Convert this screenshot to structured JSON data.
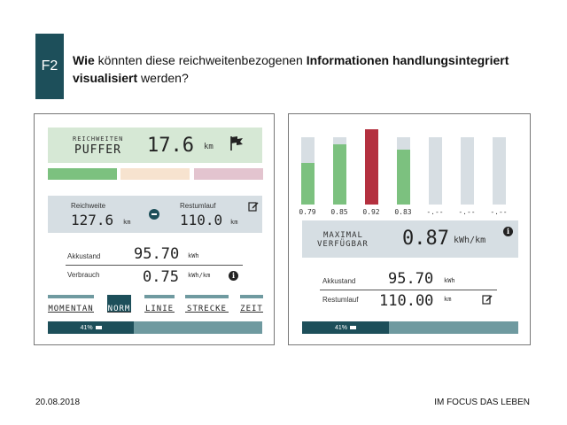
{
  "slide": {
    "tag": "F2",
    "question_parts": [
      {
        "text": "Wie ",
        "bold": true
      },
      {
        "text": "könnten diese reichweitenbezogenen ",
        "bold": false
      },
      {
        "text": "Informationen handlungsintegriert visualisiert ",
        "bold": true
      },
      {
        "text": "werden?",
        "bold": false
      }
    ],
    "date": "20.08.2018",
    "brand": "IM FOCUS DAS LEBEN"
  },
  "left": {
    "buffer": {
      "label_small": "REICHWEITEN",
      "label_big": "PUFFER",
      "value": "17.6",
      "unit": "km"
    },
    "range": {
      "label1": "Reichweite",
      "value1": "127.6",
      "unit1": "km",
      "label2": "Restumlauf",
      "value2": "110.0",
      "unit2": "km"
    },
    "akku": {
      "label": "Akkustand",
      "value": "95.70",
      "unit": "kWh"
    },
    "verbrauch": {
      "label": "Verbrauch",
      "value": "0.75",
      "unit": "kWh/km"
    },
    "modes": [
      {
        "label": "MOMENTAN",
        "active": false
      },
      {
        "label": "NORM",
        "active": true
      },
      {
        "label": "LINIE",
        "active": false
      },
      {
        "label": "STRECKE",
        "active": false
      },
      {
        "label": "ZEIT",
        "active": false
      }
    ],
    "battery": {
      "percent_label": "41%",
      "fraction": 0.41
    }
  },
  "right": {
    "chart_bars": [
      {
        "label": "0.79",
        "fill": 0.62,
        "color": "#7cc17f"
      },
      {
        "label": "0.85",
        "fill": 0.9,
        "color": "#7cc17f"
      },
      {
        "label": "0.92",
        "fill": 1.11,
        "color": "#b4303f"
      },
      {
        "label": "0.83",
        "fill": 0.82,
        "color": "#7cc17f"
      },
      {
        "label": "-.--",
        "fill": 0,
        "color": "#d7dee3"
      },
      {
        "label": "-.--",
        "fill": 0,
        "color": "#d7dee3"
      },
      {
        "label": "-.--",
        "fill": 0,
        "color": "#d7dee3"
      }
    ],
    "max": {
      "line1": "MAXIMAL",
      "line2": "VERFÜGBAR",
      "value": "0.87",
      "unit": "kWh/km"
    },
    "akku": {
      "label": "Akkustand",
      "value": "95.70",
      "unit": "kWh"
    },
    "restumlauf": {
      "label": "Restumlauf",
      "value": "110.00",
      "unit": "km"
    },
    "battery": {
      "percent_label": "41%",
      "fraction": 0.41
    }
  }
}
